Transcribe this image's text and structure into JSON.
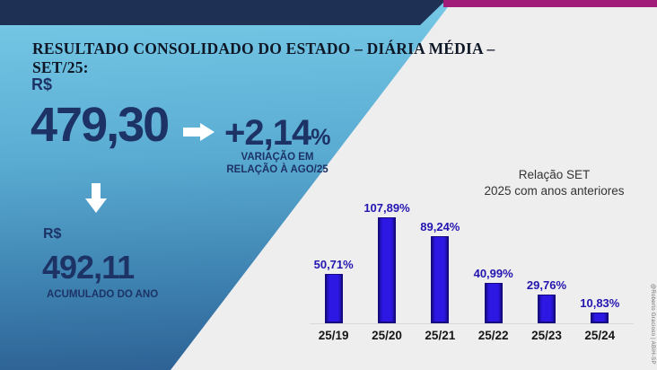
{
  "slide": {
    "title": "RESULTADO CONSOLIDADO DO ESTADO – DIÁRIA MÉDIA – SET/25:",
    "credit": "@Roberto Gracioso | ABIH-SP"
  },
  "metrics": {
    "current": {
      "currency": "R$",
      "value": "479,30"
    },
    "variation": {
      "value": "+2,14",
      "percent_sign": "%",
      "caption_line1": "VARIAÇÃO EM",
      "caption_line2": "RELAÇÃO À AGO/25"
    },
    "accumulated": {
      "currency": "R$",
      "value": "492,11",
      "caption": "ACUMULADO DO ANO"
    }
  },
  "chart_data": {
    "type": "bar",
    "title": "Relação SET 2025 com anos anteriores",
    "title_lines": [
      "Relação SET",
      "2025 com anos anteriores"
    ],
    "categories": [
      "25/19",
      "25/20",
      "25/21",
      "25/22",
      "25/23",
      "25/24"
    ],
    "values": [
      50.71,
      107.89,
      89.24,
      40.99,
      29.76,
      10.83
    ],
    "value_labels": [
      "50,71%",
      "107,89%",
      "89,24%",
      "40,99%",
      "29,76%",
      "10,83%"
    ],
    "ylim": [
      0,
      120
    ],
    "grid": false,
    "legend": false,
    "bar_color": "#2c18e2",
    "bar_edge_color": "#150a7e",
    "value_label_color": "#2215b0",
    "category_label_color": "#161616"
  },
  "colors": {
    "navy_bar": "#1e3155",
    "magenta_strip": "#a11c78",
    "gradient_top": "#79cbe8",
    "gradient_bottom": "#2b5c90",
    "background": "#efeeee",
    "navy_text": "#1d3366",
    "arrow_white": "#ffffff"
  }
}
